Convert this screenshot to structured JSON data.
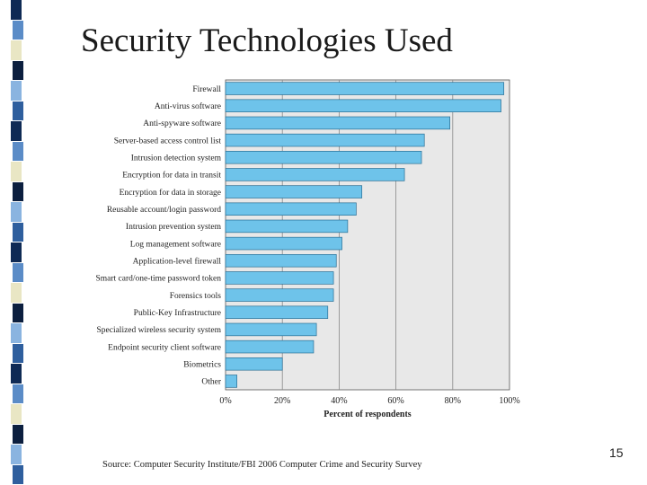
{
  "slide": {
    "title": "Security Technologies Used",
    "source": "Source: Computer Security Institute/FBI 2006 Computer Crime and Security Survey",
    "page_number": "15"
  },
  "colors": {
    "bar": "#6ec3ea",
    "bar_stroke": "#2a6f95",
    "plot_bg": "#e8e8e8",
    "grid": "#888888",
    "stripe": [
      "#0f2a55",
      "#5b8cc7",
      "#e9e6c4",
      "#0c1f3f",
      "#8ab4e0",
      "#2f5f9e"
    ]
  },
  "chart_data": {
    "type": "bar",
    "orientation": "horizontal",
    "title": "",
    "xlabel": "Percent of respondents",
    "ylabel": "",
    "xlim": [
      0,
      100
    ],
    "xticks": [
      0,
      20,
      40,
      60,
      80,
      100
    ],
    "xtick_labels": [
      "0%",
      "20%",
      "40%",
      "60%",
      "80%",
      "100%"
    ],
    "grid": true,
    "categories": [
      "Firewall",
      "Anti-virus software",
      "Anti-spyware software",
      "Server-based access control list",
      "Intrusion detection system",
      "Encryption for data in transit",
      "Encryption for data in storage",
      "Reusable account/login password",
      "Intrusion prevention system",
      "Log management software",
      "Application-level firewall",
      "Smart card/one-time password token",
      "Forensics tools",
      "Public-Key Infrastructure",
      "Specialized wireless security system",
      "Endpoint security client software",
      "Biometrics",
      "Other"
    ],
    "values": [
      98,
      97,
      79,
      70,
      69,
      63,
      48,
      46,
      43,
      41,
      39,
      38,
      38,
      36,
      32,
      31,
      20,
      4
    ]
  }
}
